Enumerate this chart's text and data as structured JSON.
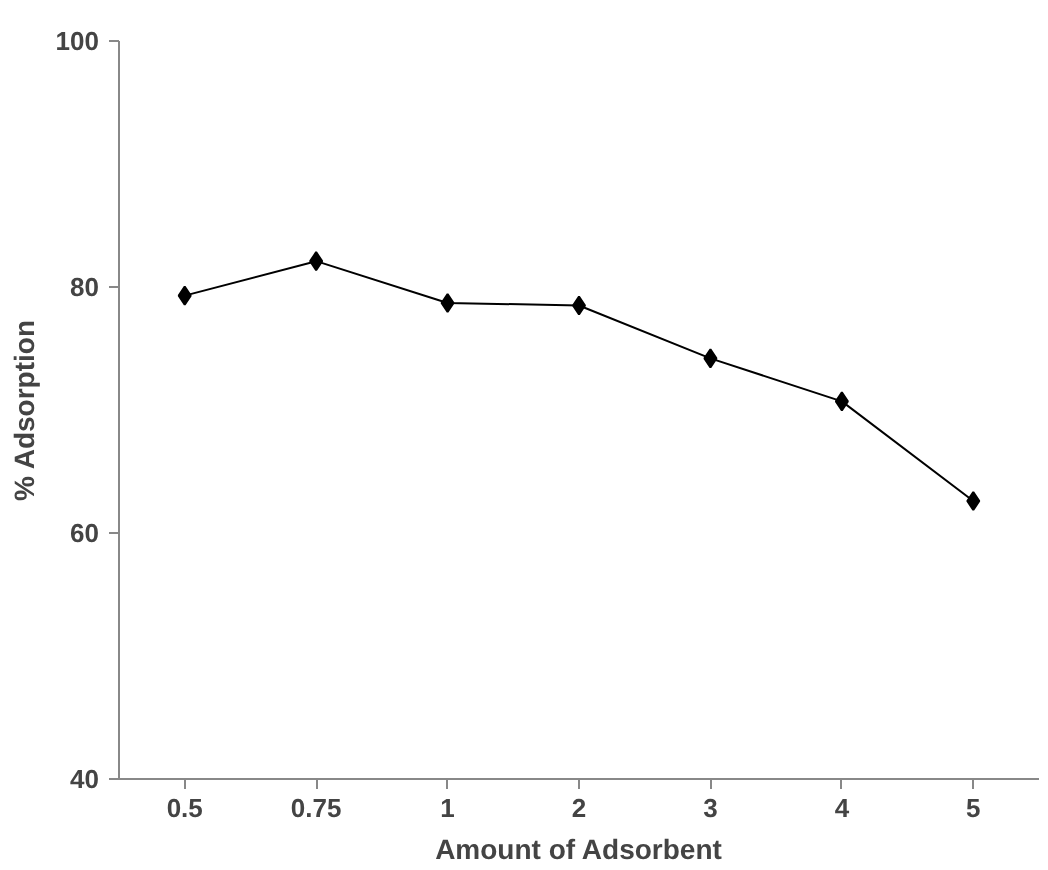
{
  "chart_data": {
    "type": "line",
    "xlabel": "Amount of Adsorbent",
    "ylabel": "% Adsorption",
    "categories": [
      "0.5",
      "0.75",
      "1",
      "2",
      "3",
      "4",
      "5"
    ],
    "series": [
      {
        "color": "#000000",
        "values": [
          79.3,
          82.1,
          78.7,
          78.5,
          74.2,
          70.7,
          62.6
        ]
      }
    ],
    "ylim": [
      40,
      100
    ],
    "yticks": [
      40,
      60,
      80,
      100
    ],
    "grid": false,
    "marker": "diamond",
    "line_style": "solid"
  }
}
